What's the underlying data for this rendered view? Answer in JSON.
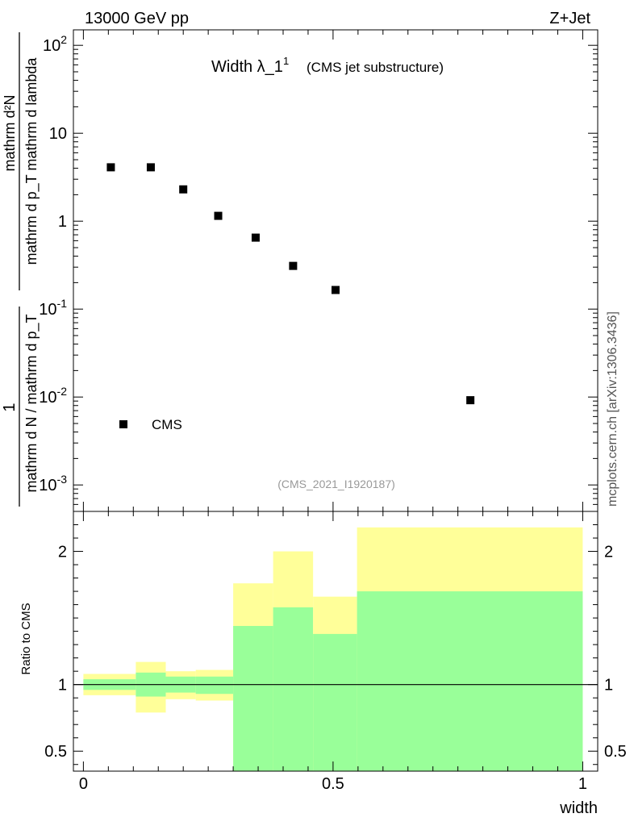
{
  "header": {
    "left": "13000 GeV pp",
    "right": "Z+Jet"
  },
  "side_label": "mcplots.cern.ch [arXiv:1306.3436]",
  "chart_data": [
    {
      "type": "scatter",
      "panel": "main",
      "title": "Width λ_1",
      "title_sup": "1",
      "subtitle": "(CMS jet substructure)",
      "watermark": "(CMS_2021_I1920187)",
      "ylabel": {
        "numerator": "mathrm d²N",
        "denominator": "mathrm d p_T mathrm d lambda",
        "prefix_numerator": "1",
        "prefix_denominator": "mathrm d N / mathrm d p_T"
      },
      "yscale": "log",
      "xlim": [
        -0.02,
        1.03
      ],
      "ylim": [
        0.0005,
        150
      ],
      "yticks": [
        {
          "value": 0.001,
          "label": "10",
          "sup": "-3"
        },
        {
          "value": 0.01,
          "label": "10",
          "sup": "-2"
        },
        {
          "value": 0.1,
          "label": "10",
          "sup": "-1"
        },
        {
          "value": 1,
          "label": "1",
          "sup": ""
        },
        {
          "value": 10,
          "label": "10",
          "sup": ""
        },
        {
          "value": 100,
          "label": "10",
          "sup": "2"
        }
      ],
      "legend": {
        "placement": "bottom-left",
        "entries": [
          "CMS"
        ]
      },
      "series": [
        {
          "name": "CMS",
          "x": [
            0.055,
            0.135,
            0.2,
            0.27,
            0.345,
            0.42,
            0.505,
            0.775
          ],
          "y": [
            4.1,
            4.1,
            2.3,
            1.15,
            0.65,
            0.31,
            0.165,
            0.0092
          ]
        }
      ]
    },
    {
      "type": "area",
      "panel": "ratio",
      "ylabel": "Ratio to CMS",
      "xlabel": "width",
      "xlim": [
        -0.02,
        1.03
      ],
      "ylim": [
        0.35,
        2.3
      ],
      "reference_line": 1,
      "xticks": [
        {
          "value": 0,
          "label": "0"
        },
        {
          "value": 0.5,
          "label": "0.5"
        },
        {
          "value": 1,
          "label": "1"
        }
      ],
      "yticks": [
        {
          "value": 0.5,
          "label": "0.5"
        },
        {
          "value": 1,
          "label": "1"
        },
        {
          "value": 2,
          "label": "2"
        }
      ],
      "bins": [
        {
          "x0": 0.0,
          "x1": 0.105,
          "yellow": [
            0.92,
            1.08
          ],
          "green": [
            0.96,
            1.04
          ]
        },
        {
          "x0": 0.105,
          "x1": 0.165,
          "yellow": [
            0.79,
            1.17
          ],
          "green": [
            0.91,
            1.09
          ]
        },
        {
          "x0": 0.165,
          "x1": 0.225,
          "yellow": [
            0.89,
            1.1
          ],
          "green": [
            0.94,
            1.06
          ]
        },
        {
          "x0": 0.225,
          "x1": 0.3,
          "yellow": [
            0.88,
            1.11
          ],
          "green": [
            0.93,
            1.06
          ]
        },
        {
          "x0": 0.3,
          "x1": 0.38,
          "yellow": [
            0.35,
            1.76
          ],
          "green": [
            0.35,
            1.44
          ]
        },
        {
          "x0": 0.38,
          "x1": 0.46,
          "yellow": [
            0.35,
            2.0
          ],
          "green": [
            0.35,
            1.58
          ]
        },
        {
          "x0": 0.46,
          "x1": 0.548,
          "yellow": [
            0.35,
            1.66
          ],
          "green": [
            0.35,
            1.38
          ]
        },
        {
          "x0": 0.548,
          "x1": 1.0,
          "yellow": [
            0.35,
            2.18
          ],
          "green": [
            0.35,
            1.7
          ]
        }
      ],
      "colors": {
        "yellow": "#ffff99",
        "green": "#99ff99",
        "line": "#000000"
      }
    }
  ]
}
